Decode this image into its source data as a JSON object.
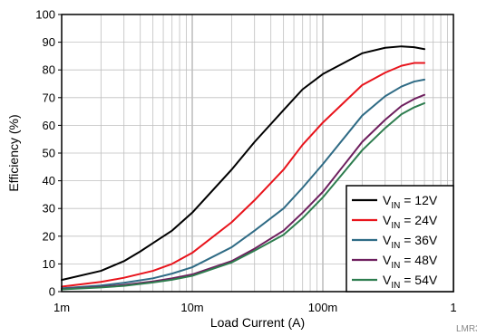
{
  "chart_data": {
    "type": "line",
    "xlabel": "Load Current (A)",
    "ylabel": "Efficiency (%)",
    "xscale": "log",
    "xlim": [
      0.001,
      1
    ],
    "ylim": [
      0,
      100
    ],
    "x_ticks": [
      {
        "value": 0.001,
        "label": "1m"
      },
      {
        "value": 0.01,
        "label": "10m"
      },
      {
        "value": 0.1,
        "label": "100m"
      },
      {
        "value": 1,
        "label": "1"
      }
    ],
    "y_ticks": [
      0,
      10,
      20,
      30,
      40,
      50,
      60,
      70,
      80,
      90,
      100
    ],
    "grid": true,
    "legend_position": "bottom-right",
    "series": [
      {
        "name": "V_IN = 12V",
        "label_main": "V",
        "label_sub": "IN",
        "label_rest": " = 12V",
        "color": "#000000",
        "x": [
          0.001,
          0.002,
          0.003,
          0.004,
          0.005,
          0.007,
          0.01,
          0.02,
          0.03,
          0.05,
          0.07,
          0.1,
          0.2,
          0.3,
          0.4,
          0.5,
          0.6
        ],
        "y": [
          4.2,
          7.5,
          11,
          14.5,
          17.5,
          22,
          28.5,
          44,
          54,
          65.5,
          73,
          78.5,
          86,
          88,
          88.5,
          88.2,
          87.5
        ]
      },
      {
        "name": "V_IN = 24V",
        "label_main": "V",
        "label_sub": "IN",
        "label_rest": " = 24V",
        "color": "#e8141c",
        "x": [
          0.001,
          0.002,
          0.003,
          0.005,
          0.007,
          0.01,
          0.02,
          0.03,
          0.05,
          0.07,
          0.1,
          0.2,
          0.3,
          0.4,
          0.5,
          0.6
        ],
        "y": [
          1.8,
          3.5,
          5,
          7.5,
          10,
          14,
          25,
          33,
          44,
          53,
          61,
          74.5,
          79,
          81.5,
          82.5,
          82.5
        ]
      },
      {
        "name": "V_IN = 36V",
        "label_main": "V",
        "label_sub": "IN",
        "label_rest": " = 36V",
        "color": "#2f6b85",
        "x": [
          0.001,
          0.002,
          0.003,
          0.005,
          0.007,
          0.01,
          0.02,
          0.03,
          0.05,
          0.07,
          0.1,
          0.2,
          0.3,
          0.4,
          0.5,
          0.6
        ],
        "y": [
          1.2,
          2.2,
          3.2,
          4.8,
          6.5,
          8.8,
          16,
          22,
          30,
          37.5,
          46,
          63.5,
          70.5,
          74,
          75.8,
          76.5
        ]
      },
      {
        "name": "V_IN = 48V",
        "label_main": "V",
        "label_sub": "IN",
        "label_rest": " = 48V",
        "color": "#6e1f5e",
        "x": [
          0.001,
          0.002,
          0.003,
          0.005,
          0.007,
          0.01,
          0.02,
          0.03,
          0.05,
          0.07,
          0.1,
          0.2,
          0.3,
          0.4,
          0.5,
          0.6
        ],
        "y": [
          0.9,
          1.7,
          2.4,
          3.7,
          4.8,
          6.2,
          11,
          15.5,
          22,
          28.5,
          36,
          54,
          62,
          67,
          69.5,
          71
        ]
      },
      {
        "name": "V_IN = 54V",
        "label_main": "V",
        "label_sub": "IN",
        "label_rest": " = 54V",
        "color": "#2e7d4f",
        "x": [
          0.001,
          0.002,
          0.003,
          0.005,
          0.007,
          0.01,
          0.02,
          0.03,
          0.05,
          0.07,
          0.1,
          0.2,
          0.3,
          0.4,
          0.5,
          0.6
        ],
        "y": [
          0.8,
          1.5,
          2.1,
          3.3,
          4.3,
          5.7,
          10.5,
          14.8,
          20.5,
          26.5,
          34,
          51,
          59,
          64,
          66.5,
          68
        ]
      }
    ]
  },
  "watermark": "LMR3"
}
